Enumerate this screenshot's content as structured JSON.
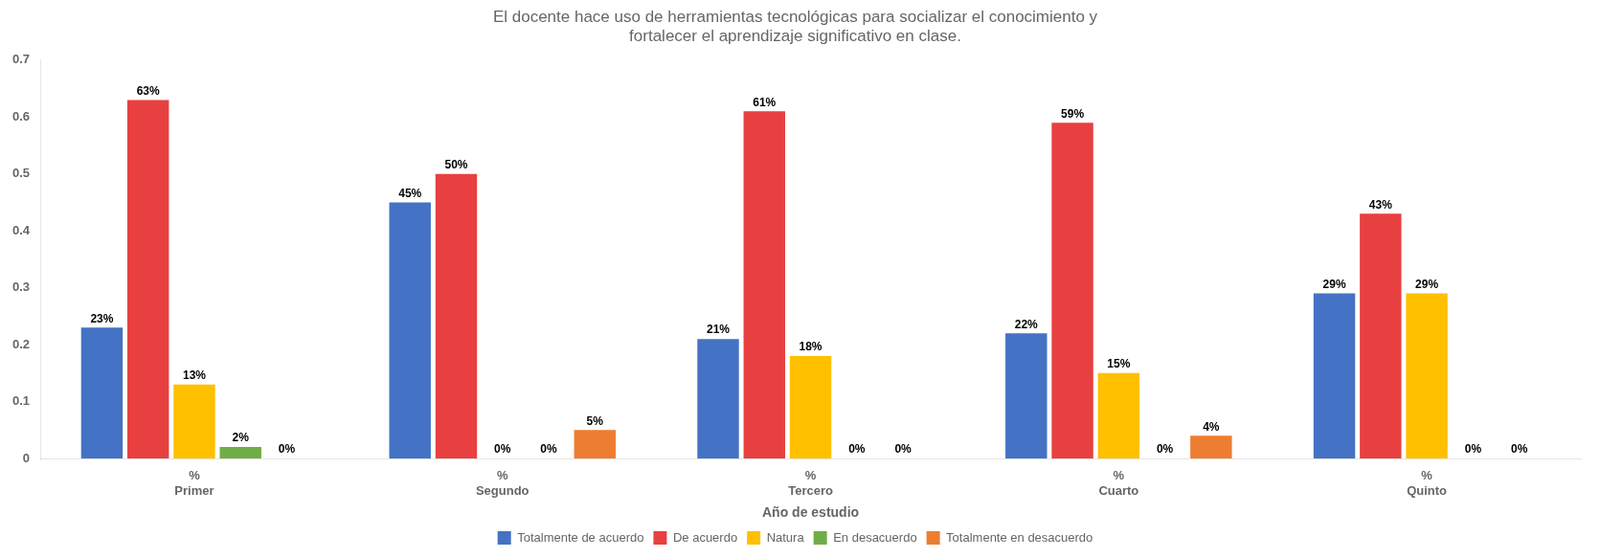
{
  "chart_data": {
    "type": "bar",
    "title": "El docente hace uso de herramientas tecnológicas para socializar el conocimiento y\nfortalecer el aprendizaje significativo en clase.",
    "xlabel": "Año de estudio",
    "categories": [
      "Primer",
      "Segundo",
      "Tercero",
      "Cuarto",
      "Quinto"
    ],
    "series": [
      {
        "name": "Totalmente de acuerdo",
        "color": "#4472C4",
        "values": [
          0.23,
          0.45,
          0.21,
          0.22,
          0.29
        ],
        "value_labels": [
          "23%",
          "45%",
          "21%",
          "22%",
          "29%"
        ]
      },
      {
        "name": "De acuerdo",
        "color": "#E84040",
        "values": [
          0.63,
          0.5,
          0.61,
          0.59,
          0.43
        ],
        "value_labels": [
          "63%",
          "50%",
          "61%",
          "59%",
          "43%"
        ]
      },
      {
        "name": "Natura",
        "color": "#FFC000",
        "values": [
          0.13,
          0.0,
          0.18,
          0.15,
          0.29
        ],
        "value_labels": [
          "13%",
          "0%",
          "18%",
          "15%",
          "29%"
        ]
      },
      {
        "name": "En desacuerdo",
        "color": "#70AD47",
        "values": [
          0.02,
          0.0,
          0.0,
          0.0,
          0.0
        ],
        "value_labels": [
          "2%",
          "0%",
          "0%",
          "0%",
          "0%"
        ]
      },
      {
        "name": "Totalmente en desacuerdo",
        "color": "#ED7D31",
        "values": [
          0.0,
          0.05,
          0.0,
          0.04,
          0.0
        ],
        "value_labels": [
          "0%",
          "5%",
          "0%",
          "4%",
          "0%"
        ]
      }
    ],
    "annotations": [
      {
        "text": "%",
        "x": "Primer"
      },
      {
        "text": "%",
        "x": "Segundo"
      },
      {
        "text": "%",
        "x": "Tercero"
      },
      {
        "text": "%",
        "x": "Cuarto"
      },
      {
        "text": "%",
        "x": "Quinto"
      }
    ],
    "ylim": [
      0,
      0.7
    ],
    "yticks": [
      0,
      0.1,
      0.2,
      0.3,
      0.4,
      0.5,
      0.6,
      0.7
    ],
    "grid": false,
    "legend": "bottom",
    "data_labels": true
  }
}
